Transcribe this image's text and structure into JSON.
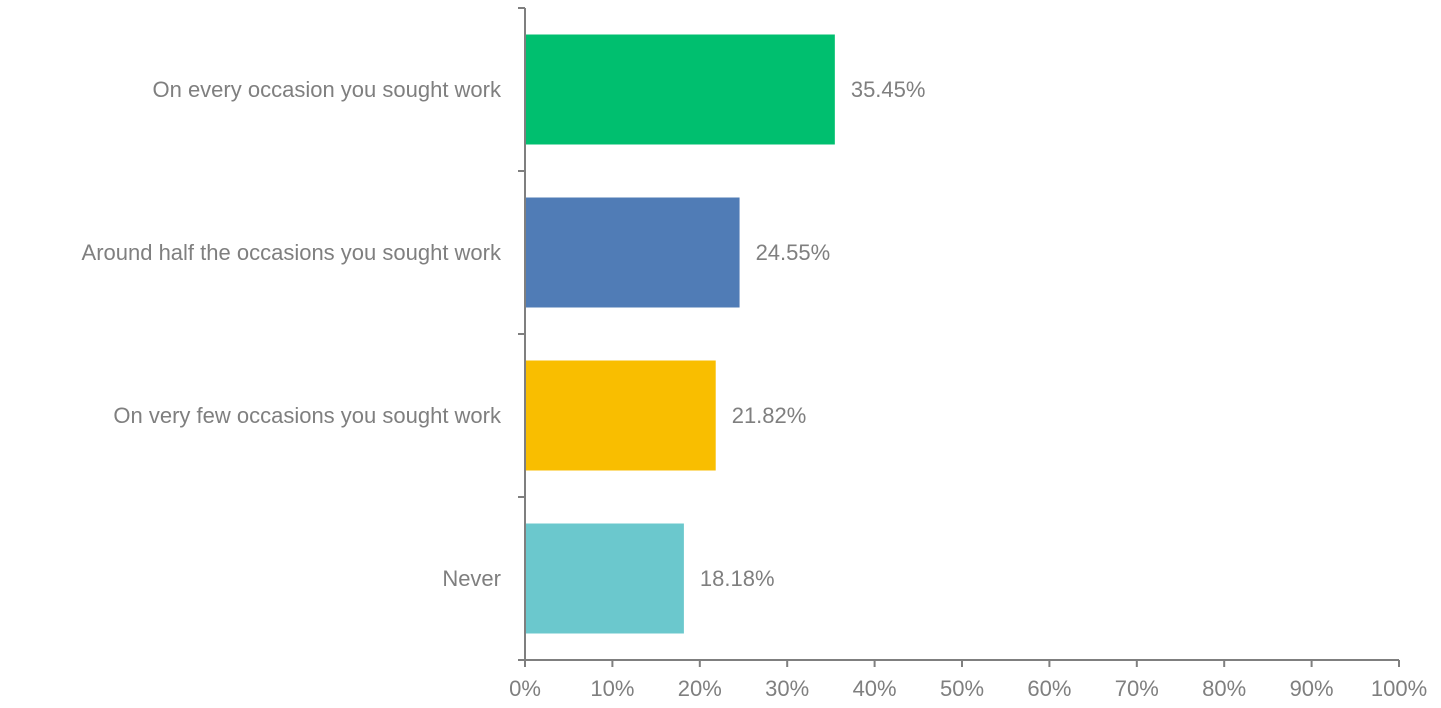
{
  "chart_data": {
    "type": "bar",
    "orientation": "horizontal",
    "categories": [
      "On every occasion you sought work",
      "Around half the occasions you sought work",
      "On very few occasions you sought work",
      "Never"
    ],
    "values": [
      35.45,
      24.55,
      21.82,
      18.18
    ],
    "value_labels": [
      "35.45%",
      "24.55%",
      "21.82%",
      "18.18%"
    ],
    "colors": [
      "#00bf6f",
      "#507cb6",
      "#f9be00",
      "#6bc8cd"
    ],
    "xlim": [
      0,
      100
    ],
    "x_ticks": [
      0,
      10,
      20,
      30,
      40,
      50,
      60,
      70,
      80,
      90,
      100
    ],
    "x_tick_labels": [
      "0%",
      "10%",
      "20%",
      "30%",
      "40%",
      "50%",
      "60%",
      "70%",
      "80%",
      "90%",
      "100%"
    ],
    "grid": false,
    "legend": "none"
  }
}
